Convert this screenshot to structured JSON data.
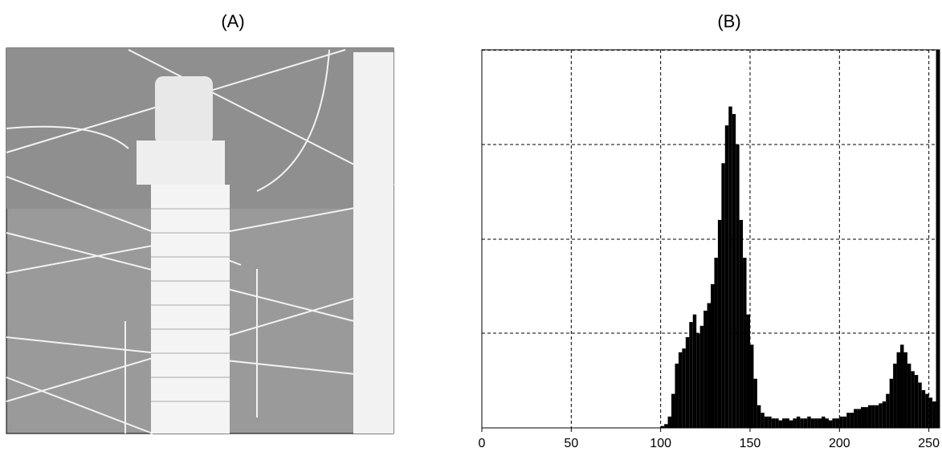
{
  "image": {
    "title": "(A)"
  },
  "chart_data": {
    "type": "histogram",
    "title": "(B)",
    "bins": [
      98,
      100,
      102,
      104,
      106,
      108,
      110,
      112,
      114,
      116,
      118,
      120,
      122,
      124,
      126,
      128,
      130,
      132,
      134,
      136,
      138,
      140,
      142,
      144,
      146,
      148,
      150,
      152,
      154,
      156,
      158,
      160,
      162,
      164,
      166,
      168,
      170,
      172,
      174,
      176,
      178,
      180,
      182,
      184,
      186,
      188,
      190,
      192,
      194,
      196,
      198,
      200,
      202,
      204,
      206,
      208,
      210,
      212,
      214,
      216,
      218,
      220,
      222,
      224,
      226,
      228,
      230,
      232,
      234,
      236,
      238,
      240,
      242,
      244,
      246,
      248,
      250,
      252,
      254,
      256
    ],
    "counts": [
      0,
      0.5,
      1,
      3,
      9,
      17,
      20,
      21,
      24,
      28,
      30,
      25,
      27,
      31,
      33,
      38,
      45,
      55,
      70,
      80,
      85,
      83,
      75,
      55,
      45,
      30,
      22,
      13,
      6,
      4,
      3,
      3,
      2.5,
      2.5,
      2,
      2.5,
      2.5,
      2,
      2.5,
      3,
      2.5,
      2.5,
      3,
      2.5,
      2.5,
      2.5,
      3,
      2.5,
      2,
      2.5,
      2.5,
      3,
      3,
      4,
      4,
      5,
      5,
      5.5,
      5.5,
      6,
      6,
      6,
      6.5,
      7,
      9,
      13,
      17,
      20,
      22,
      20,
      17,
      15,
      14,
      12,
      10,
      9,
      8,
      7,
      100
    ],
    "color": "#000000",
    "xlim": [
      0,
      256
    ],
    "ylim": [
      0,
      100
    ],
    "xticks": [
      0,
      50,
      100,
      150,
      200,
      250
    ],
    "grid": true
  }
}
